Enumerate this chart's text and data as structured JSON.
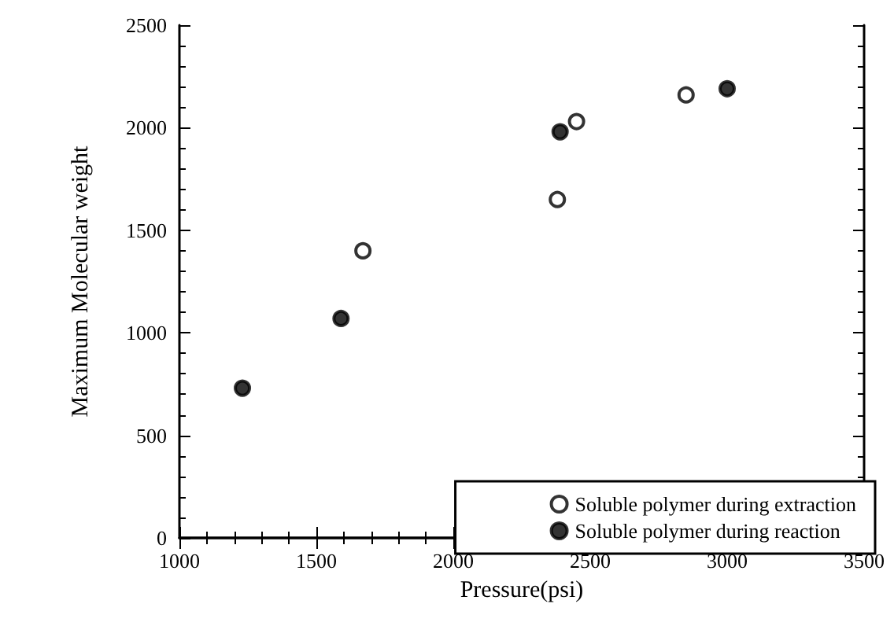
{
  "chart_data": {
    "type": "scatter",
    "xlabel": "Pressure(psi)",
    "ylabel": "Maximum Molecular weight",
    "xlim": [
      1000,
      3500
    ],
    "xticks": [
      1000,
      1500,
      2000,
      2500,
      3000,
      3500
    ],
    "ylim": [
      0,
      2500
    ],
    "yticks": [
      0,
      500,
      1000,
      1500,
      2000,
      2500
    ],
    "grid": false,
    "legend": "bottom right",
    "marker": "circle",
    "series": [
      {
        "name": "Soluble polymer during extraction",
        "color": "#ffffff",
        "x": [
          1670,
          2380,
          2450,
          2850
        ],
        "values": [
          1400,
          1650,
          2030,
          2160
        ]
      },
      {
        "name": "Soluble polymer during reaction",
        "color": "#000000",
        "x": [
          1230,
          1590,
          2390,
          3000
        ],
        "values": [
          730,
          1070,
          1980,
          2190
        ]
      }
    ]
  }
}
